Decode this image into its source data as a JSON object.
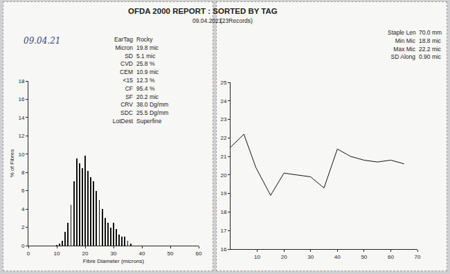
{
  "header": {
    "title": "OFDA 2000 REPORT : SORTED BY TAG",
    "date": "09.04.2021",
    "records": "(23Records)",
    "handwritten_date": "09.04.21"
  },
  "chart_data": [
    {
      "type": "bar",
      "x_label": "Fibre Diameter (microns)",
      "y_label": "% of Fibres",
      "bins": [
        9.5,
        10.5,
        11.5,
        12.5,
        13.5,
        14.5,
        15.5,
        16.5,
        17.5,
        18.5,
        19.5,
        20.5,
        21.5,
        22.5,
        23.5,
        24.5,
        25.5,
        26.5,
        27.5,
        28.5,
        29.5,
        30.5,
        31.5,
        32.5,
        33.5,
        34.5,
        35.5,
        36.5
      ],
      "values": [
        0.1,
        0.2,
        0.5,
        1.5,
        2.5,
        4.5,
        7.0,
        9.5,
        9.0,
        8.5,
        9.8,
        8.2,
        7.5,
        7.0,
        6.0,
        5.0,
        4.0,
        3.0,
        2.5,
        2.0,
        2.5,
        1.8,
        1.2,
        1.0,
        1.0,
        0.5,
        0.2
      ],
      "color": "#111111",
      "xlim": [
        0,
        60
      ],
      "xticks": [
        0,
        10,
        20,
        30,
        40,
        50,
        60
      ],
      "ylim": [
        0,
        18
      ],
      "yticks": [
        0,
        2,
        4,
        6,
        8,
        10,
        12,
        14,
        16,
        18
      ],
      "grid": false,
      "annotations": [
        {
          "label": "EarTag",
          "value": "Rocky"
        },
        {
          "label": "Micron",
          "value": "19.8 mic"
        },
        {
          "label": "SD",
          "value": "5.1 mic"
        },
        {
          "label": "CVD",
          "value": "25.8 %"
        },
        {
          "label": "CEM",
          "value": "10.9 mic"
        },
        {
          "label": "<15",
          "value": "12.3 %"
        },
        {
          "label": "CF",
          "value": "95.4 %"
        },
        {
          "label": "SF",
          "value": "20.2 mic"
        },
        {
          "label": "CRV",
          "value": "38.0 Dg/mm"
        },
        {
          "label": "SDC",
          "value": "25.5 Dg/mm"
        },
        {
          "label": "LotDest",
          "value": "Superfine"
        }
      ]
    },
    {
      "type": "line",
      "x": [
        0,
        5,
        9.5,
        15,
        20,
        30,
        35,
        40,
        45,
        50,
        55,
        60,
        65
      ],
      "values": [
        21.5,
        22.2,
        20.4,
        18.9,
        20.1,
        19.9,
        19.3,
        21.4,
        21.0,
        20.8,
        20.7,
        20.8,
        20.6
      ],
      "color": "#111111",
      "xlim": [
        0,
        70
      ],
      "xticks": [
        10,
        20,
        30,
        40,
        50,
        60,
        70
      ],
      "ylim": [
        16,
        25
      ],
      "yticks": [
        16,
        17,
        18,
        19,
        20,
        21,
        22,
        23,
        24,
        25
      ],
      "grid": false,
      "annotations": [
        {
          "label": "Staple Len",
          "value": "70.0 mm"
        },
        {
          "label": "Min Mic",
          "value": "18.8 mic"
        },
        {
          "label": "Max Mic",
          "value": "22.2 mic"
        },
        {
          "label": "SD Along",
          "value": "0.90 mic"
        }
      ]
    }
  ]
}
